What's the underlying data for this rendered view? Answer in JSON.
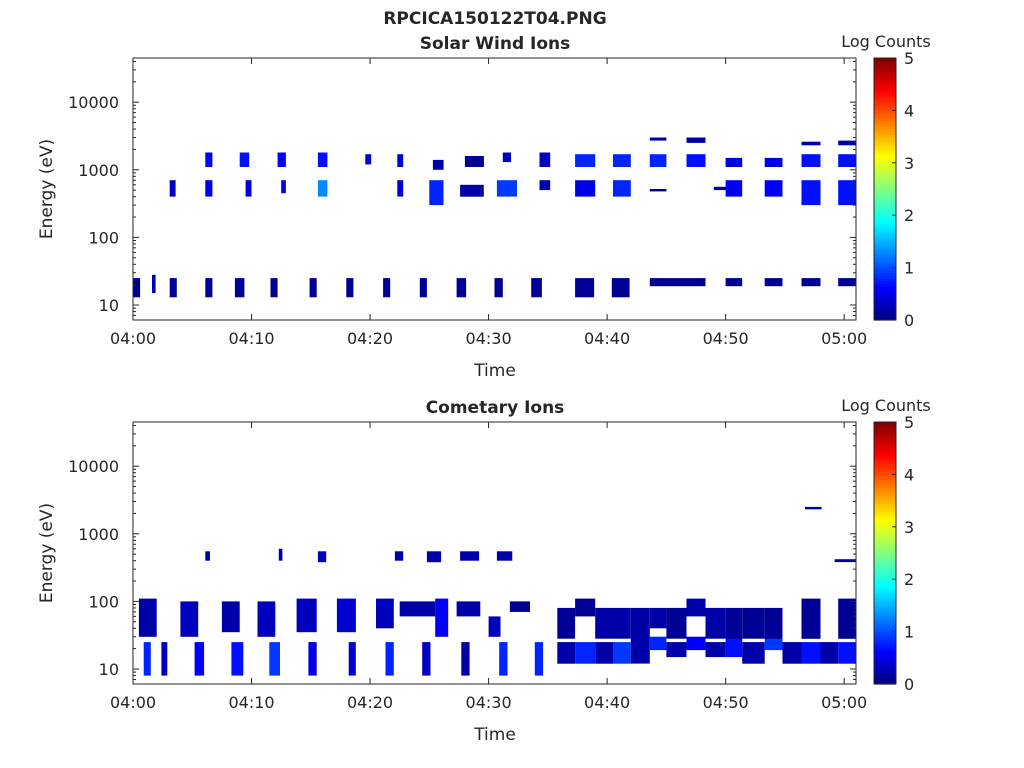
{
  "figure": {
    "title": "RPCICA150122T04.PNG"
  },
  "chart_data": [
    {
      "type": "heatmap",
      "title": "Solar Wind Ions",
      "xlabel": "Time",
      "ylabel": "Energy (eV)",
      "xticks": [
        "04:00",
        "04:10",
        "04:20",
        "04:30",
        "04:40",
        "04:50",
        "05:00"
      ],
      "xlim_minutes": [
        0,
        61
      ],
      "yscale": "log",
      "ylim": [
        6,
        45000
      ],
      "yticks": [
        10,
        100,
        1000,
        10000
      ],
      "ytick_labels": [
        "10",
        "100",
        "1000",
        "10000"
      ],
      "colorbar": {
        "label": "Log Counts",
        "min": 0,
        "max": 5,
        "ticks": [
          "0",
          "1",
          "2",
          "3",
          "4",
          "5"
        ]
      },
      "cells": [
        [
          1.6,
          1.9,
          15,
          28,
          0.2
        ],
        [
          6.1,
          6.7,
          1100,
          1800,
          0.6
        ],
        [
          9.0,
          9.8,
          1100,
          1800,
          0.7
        ],
        [
          12.2,
          12.9,
          1100,
          1800,
          0.6
        ],
        [
          15.6,
          16.4,
          1100,
          1800,
          0.7
        ],
        [
          19.6,
          20.1,
          1200,
          1700,
          0.4
        ],
        [
          22.3,
          22.8,
          1100,
          1700,
          0.4
        ],
        [
          25.3,
          26.2,
          1000,
          1400,
          0.2
        ],
        [
          28.0,
          29.6,
          1100,
          1600,
          0.1
        ],
        [
          31.2,
          31.9,
          1300,
          1800,
          0.3
        ],
        [
          34.3,
          35.2,
          1100,
          1800,
          0.3
        ],
        [
          37.3,
          39.0,
          1100,
          1700,
          0.8
        ],
        [
          40.5,
          42.0,
          1100,
          1700,
          0.8
        ],
        [
          43.6,
          45.0,
          1100,
          1700,
          0.8
        ],
        [
          46.7,
          48.3,
          1100,
          1700,
          0.7
        ],
        [
          50.0,
          51.4,
          1100,
          1500,
          0.5
        ],
        [
          53.3,
          54.8,
          1100,
          1500,
          0.5
        ],
        [
          56.4,
          58.0,
          1100,
          1700,
          0.7
        ],
        [
          59.5,
          61.0,
          1100,
          1700,
          0.7
        ],
        [
          43.6,
          45.0,
          2700,
          3000,
          0.2
        ],
        [
          46.7,
          48.3,
          2500,
          3000,
          0.2
        ],
        [
          56.4,
          58.0,
          2300,
          2600,
          0.2
        ],
        [
          59.5,
          61.0,
          2300,
          2700,
          0.2
        ],
        [
          3.1,
          3.6,
          400,
          700,
          0.3
        ],
        [
          6.1,
          6.7,
          400,
          700,
          0.5
        ],
        [
          9.5,
          10.0,
          400,
          700,
          0.4
        ],
        [
          12.5,
          12.9,
          450,
          700,
          0.5
        ],
        [
          15.6,
          16.4,
          400,
          700,
          1.3
        ],
        [
          22.3,
          22.8,
          400,
          700,
          0.4
        ],
        [
          25.0,
          26.2,
          300,
          700,
          0.8
        ],
        [
          27.6,
          29.6,
          400,
          600,
          0.2
        ],
        [
          30.7,
          32.4,
          400,
          700,
          0.9
        ],
        [
          34.3,
          35.2,
          500,
          700,
          0.2
        ],
        [
          37.3,
          39.0,
          400,
          700,
          0.5
        ],
        [
          40.5,
          42.0,
          400,
          700,
          0.8
        ],
        [
          43.6,
          45.0,
          480,
          520,
          0.1
        ],
        [
          49.0,
          50.2,
          500,
          560,
          0.2
        ],
        [
          50.0,
          51.4,
          400,
          700,
          0.6
        ],
        [
          53.3,
          54.8,
          400,
          700,
          0.6
        ],
        [
          56.4,
          58.0,
          300,
          700,
          0.7
        ],
        [
          59.5,
          61.0,
          300,
          700,
          0.7
        ],
        [
          0.0,
          0.6,
          13,
          25,
          0.1
        ],
        [
          3.1,
          3.7,
          13,
          25,
          0.1
        ],
        [
          6.1,
          6.7,
          13,
          25,
          0.1
        ],
        [
          8.6,
          9.4,
          13,
          25,
          0.1
        ],
        [
          11.6,
          12.2,
          13,
          25,
          0.1
        ],
        [
          14.9,
          15.5,
          13,
          25,
          0.1
        ],
        [
          18.0,
          18.6,
          13,
          25,
          0.1
        ],
        [
          21.1,
          21.7,
          13,
          25,
          0.1
        ],
        [
          24.2,
          24.8,
          13,
          25,
          0.1
        ],
        [
          27.3,
          28.1,
          13,
          25,
          0.1
        ],
        [
          30.5,
          31.2,
          13,
          25,
          0.1
        ],
        [
          33.6,
          34.5,
          13,
          25,
          0.1
        ],
        [
          37.3,
          38.9,
          13,
          25,
          0.1
        ],
        [
          40.4,
          41.9,
          13,
          25,
          0.1
        ],
        [
          43.6,
          48.3,
          19,
          25,
          0.1
        ],
        [
          50.0,
          51.4,
          19,
          25,
          0.1
        ],
        [
          53.3,
          54.8,
          19,
          25,
          0.1
        ],
        [
          56.4,
          58.0,
          19,
          25,
          0.1
        ],
        [
          59.5,
          61.0,
          19,
          25,
          0.1
        ]
      ]
    },
    {
      "type": "heatmap",
      "title": "Cometary Ions",
      "xlabel": "Time",
      "ylabel": "Energy (eV)",
      "xticks": [
        "04:00",
        "04:10",
        "04:20",
        "04:30",
        "04:40",
        "04:50",
        "05:00"
      ],
      "xlim_minutes": [
        0,
        61
      ],
      "yscale": "log",
      "ylim": [
        6,
        45000
      ],
      "yticks": [
        10,
        100,
        1000,
        10000
      ],
      "ytick_labels": [
        "10",
        "100",
        "1000",
        "10000"
      ],
      "colorbar": {
        "label": "Log Counts",
        "min": 0,
        "max": 5,
        "ticks": [
          "0",
          "1",
          "2",
          "3",
          "4",
          "5"
        ]
      },
      "cells": [
        [
          0.9,
          1.5,
          8,
          25,
          0.8
        ],
        [
          2.4,
          2.9,
          8,
          25,
          0.3
        ],
        [
          5.2,
          6.0,
          8,
          25,
          0.6
        ],
        [
          8.3,
          9.3,
          8,
          25,
          0.7
        ],
        [
          11.5,
          12.4,
          8,
          25,
          0.9
        ],
        [
          14.8,
          15.5,
          8,
          25,
          0.5
        ],
        [
          18.2,
          18.8,
          8,
          25,
          0.4
        ],
        [
          21.3,
          22.0,
          8,
          25,
          0.8
        ],
        [
          24.4,
          25.1,
          8,
          25,
          0.3
        ],
        [
          27.7,
          28.4,
          8,
          25,
          0.2
        ],
        [
          30.9,
          31.6,
          8,
          25,
          0.8
        ],
        [
          33.9,
          34.6,
          8,
          25,
          0.8
        ],
        [
          35.8,
          37.3,
          12,
          25,
          0.2
        ],
        [
          37.3,
          39.0,
          12,
          25,
          0.8
        ],
        [
          39.0,
          40.5,
          12,
          25,
          0.2
        ],
        [
          40.5,
          42.0,
          12,
          25,
          0.9
        ],
        [
          42.0,
          43.6,
          12,
          30,
          0.2
        ],
        [
          43.6,
          45.0,
          19,
          30,
          0.8
        ],
        [
          45.0,
          46.7,
          15,
          25,
          0.2
        ],
        [
          46.7,
          48.3,
          19,
          30,
          0.6
        ],
        [
          48.3,
          50.0,
          15,
          25,
          0.2
        ],
        [
          50.0,
          51.4,
          15,
          30,
          0.7
        ],
        [
          51.4,
          53.3,
          12,
          25,
          0.2
        ],
        [
          53.3,
          54.8,
          19,
          30,
          0.9
        ],
        [
          54.8,
          56.4,
          12,
          25,
          0.2
        ],
        [
          56.4,
          58.0,
          12,
          25,
          0.7
        ],
        [
          58.0,
          59.5,
          12,
          25,
          0.2
        ],
        [
          59.5,
          61.0,
          12,
          25,
          0.7
        ],
        [
          35.8,
          37.3,
          28,
          80,
          0.1
        ],
        [
          37.3,
          39.0,
          60,
          110,
          0.1
        ],
        [
          39.0,
          40.5,
          28,
          80,
          0.2
        ],
        [
          40.5,
          42.0,
          28,
          80,
          0.2
        ],
        [
          42.0,
          43.6,
          28,
          80,
          0.2
        ],
        [
          43.6,
          45.0,
          40,
          80,
          0.2
        ],
        [
          45.0,
          46.7,
          28,
          80,
          0.1
        ],
        [
          46.7,
          48.3,
          60,
          110,
          0.2
        ],
        [
          48.3,
          50.0,
          28,
          80,
          0.2
        ],
        [
          50.0,
          51.4,
          28,
          80,
          0.1
        ],
        [
          51.4,
          53.3,
          28,
          80,
          0.1
        ],
        [
          53.3,
          54.8,
          28,
          80,
          0.1
        ],
        [
          56.4,
          58.0,
          28,
          110,
          0.1
        ],
        [
          59.5,
          61.0,
          28,
          110,
          0.1
        ],
        [
          0.5,
          2.0,
          30,
          110,
          0.2
        ],
        [
          4.0,
          5.5,
          30,
          100,
          0.3
        ],
        [
          7.5,
          9.0,
          35,
          100,
          0.2
        ],
        [
          10.5,
          12.0,
          30,
          100,
          0.3
        ],
        [
          13.8,
          15.5,
          35,
          110,
          0.3
        ],
        [
          17.2,
          18.8,
          35,
          110,
          0.4
        ],
        [
          20.5,
          22.0,
          40,
          110,
          0.3
        ],
        [
          22.5,
          25.5,
          60,
          100,
          0.2
        ],
        [
          25.5,
          26.6,
          30,
          110,
          0.6
        ],
        [
          27.3,
          29.3,
          60,
          100,
          0.2
        ],
        [
          30.0,
          31.0,
          30,
          60,
          0.3
        ],
        [
          31.8,
          33.5,
          70,
          100,
          0.1
        ],
        [
          6.1,
          6.5,
          400,
          550,
          0.2
        ],
        [
          12.3,
          12.6,
          400,
          600,
          0.2
        ],
        [
          15.6,
          16.3,
          380,
          550,
          0.3
        ],
        [
          22.1,
          22.8,
          400,
          550,
          0.2
        ],
        [
          24.8,
          26.0,
          380,
          550,
          0.2
        ],
        [
          27.6,
          29.2,
          400,
          550,
          0.2
        ],
        [
          30.7,
          32.0,
          400,
          550,
          0.2
        ],
        [
          56.7,
          58.1,
          2300,
          2500,
          0.2
        ],
        [
          59.2,
          61.0,
          380,
          420,
          0.2
        ]
      ]
    }
  ]
}
